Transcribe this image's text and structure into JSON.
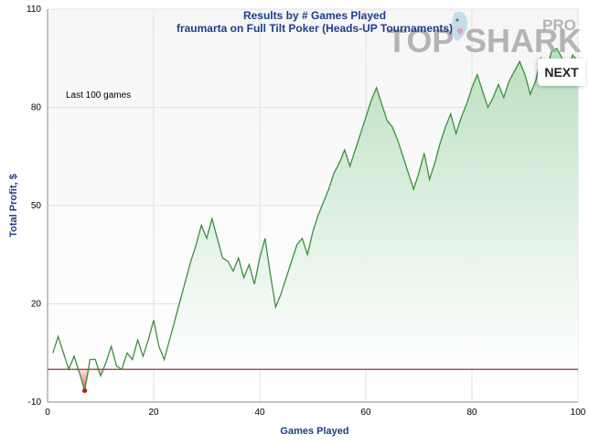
{
  "chart_data": {
    "type": "area",
    "title": "Results by # Games Played",
    "subtitle": "fraumarta on Full Tilt Poker (Heads-UP Tournaments)",
    "annotation": "Last 100 games",
    "xlabel": "Games Played",
    "ylabel": "Total Profit, $",
    "xlim": [
      0,
      100
    ],
    "ylim": [
      -10,
      110
    ],
    "xticks": [
      0,
      20,
      40,
      60,
      80,
      100
    ],
    "yticks": [
      -10,
      20,
      50,
      80,
      110
    ],
    "grid": true,
    "baseline": 0,
    "colors": {
      "line": "#3d8f3d",
      "fill": "#c6e6cc",
      "negative": "#e05050",
      "baseline": "#8b1a1a",
      "marker": "#cc1111"
    },
    "min_point": {
      "x": 7,
      "y": -6.5
    },
    "x": [
      1,
      2,
      3,
      4,
      5,
      6,
      7,
      8,
      9,
      10,
      11,
      12,
      13,
      14,
      15,
      16,
      17,
      18,
      19,
      20,
      21,
      22,
      23,
      24,
      25,
      26,
      27,
      28,
      29,
      30,
      31,
      32,
      33,
      34,
      35,
      36,
      37,
      38,
      39,
      40,
      41,
      42,
      43,
      44,
      45,
      46,
      47,
      48,
      49,
      50,
      51,
      52,
      53,
      54,
      55,
      56,
      57,
      58,
      59,
      60,
      61,
      62,
      63,
      64,
      65,
      66,
      67,
      68,
      69,
      70,
      71,
      72,
      73,
      74,
      75,
      76,
      77,
      78,
      79,
      80,
      81,
      82,
      83,
      84,
      85,
      86,
      87,
      88,
      89,
      90,
      91,
      92,
      93,
      94,
      95,
      96,
      97,
      98,
      99,
      100
    ],
    "values": [
      5,
      10,
      5,
      0,
      4,
      -1,
      -6.5,
      3,
      3,
      -2,
      2,
      7,
      1,
      0,
      5,
      3,
      9,
      4,
      9,
      15,
      7,
      3,
      9,
      15,
      21,
      27,
      33,
      38,
      44,
      40,
      46,
      40,
      34,
      33,
      30,
      34,
      28,
      32,
      26,
      34,
      40,
      29,
      19,
      23,
      28,
      33,
      38,
      40,
      35,
      42,
      47,
      51,
      55,
      60,
      63,
      67,
      62,
      67,
      72,
      77,
      82,
      86,
      81,
      76,
      74,
      70,
      65,
      60,
      55,
      60,
      66,
      58,
      63,
      69,
      74,
      78,
      72,
      77,
      81,
      86,
      90,
      85,
      80,
      83,
      87,
      83,
      88,
      91,
      94,
      90,
      84,
      88,
      95,
      91,
      97,
      98,
      95,
      91,
      96,
      94
    ]
  },
  "logo": {
    "part1": "TOP",
    "part2": "SHARK",
    "pro": "PRO"
  },
  "nav": {
    "next_label": "NEXT"
  }
}
